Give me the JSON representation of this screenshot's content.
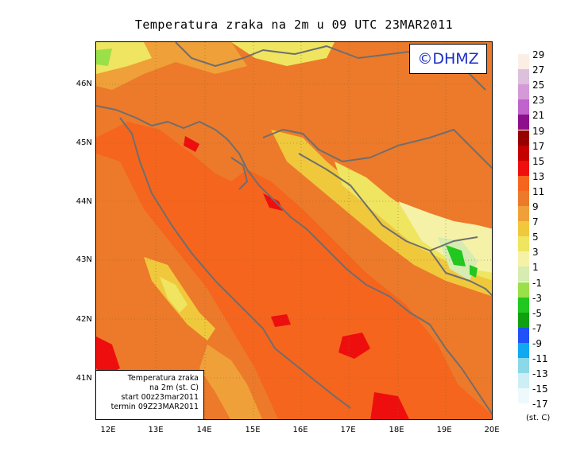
{
  "title": "Temperatura zraka na 2m u 09 UTC 23MAR2011",
  "logo": "©DHMZ",
  "info": {
    "line1": "Temperatura zraka",
    "line2": "na 2m (st. C)",
    "line3": "start 00z23mar2011",
    "line4": "termin 09Z23MAR2011"
  },
  "axes": {
    "y_ticks": [
      "46N",
      "45N",
      "44N",
      "43N",
      "42N",
      "41N"
    ],
    "x_ticks": [
      "12E",
      "13E",
      "14E",
      "15E",
      "16E",
      "17E",
      "18E",
      "19E",
      "20E"
    ]
  },
  "legend": {
    "unit": "(st. C)",
    "entries": [
      {
        "label": "29",
        "color": "#fbeee4"
      },
      {
        "label": "27",
        "color": "#dcc0dc"
      },
      {
        "label": "25",
        "color": "#d49ad8"
      },
      {
        "label": "23",
        "color": "#c063cc"
      },
      {
        "label": "21",
        "color": "#8e0f8e"
      },
      {
        "label": "19",
        "color": "#980000"
      },
      {
        "label": "17",
        "color": "#c40000"
      },
      {
        "label": "15",
        "color": "#ee0e0e"
      },
      {
        "label": "13",
        "color": "#f5651e"
      },
      {
        "label": "11",
        "color": "#ec7a2a"
      },
      {
        "label": "9",
        "color": "#f0a038"
      },
      {
        "label": "7",
        "color": "#f0c83c"
      },
      {
        "label": "5",
        "color": "#efe560"
      },
      {
        "label": "3",
        "color": "#f5f2a8"
      },
      {
        "label": "1",
        "color": "#d6ecb0"
      },
      {
        "label": "-1",
        "color": "#9ae048"
      },
      {
        "label": "-3",
        "color": "#20c820"
      },
      {
        "label": "-5",
        "color": "#10a010"
      },
      {
        "label": "-7",
        "color": "#2050f8"
      },
      {
        "label": "-9",
        "color": "#10a8f0"
      },
      {
        "label": "-11",
        "color": "#8ad8e8"
      },
      {
        "label": "-13",
        "color": "#cdeef4"
      },
      {
        "label": "-15",
        "color": "#eef9fb"
      },
      {
        "label": "-17",
        "color": "#ffffff"
      }
    ]
  }
}
